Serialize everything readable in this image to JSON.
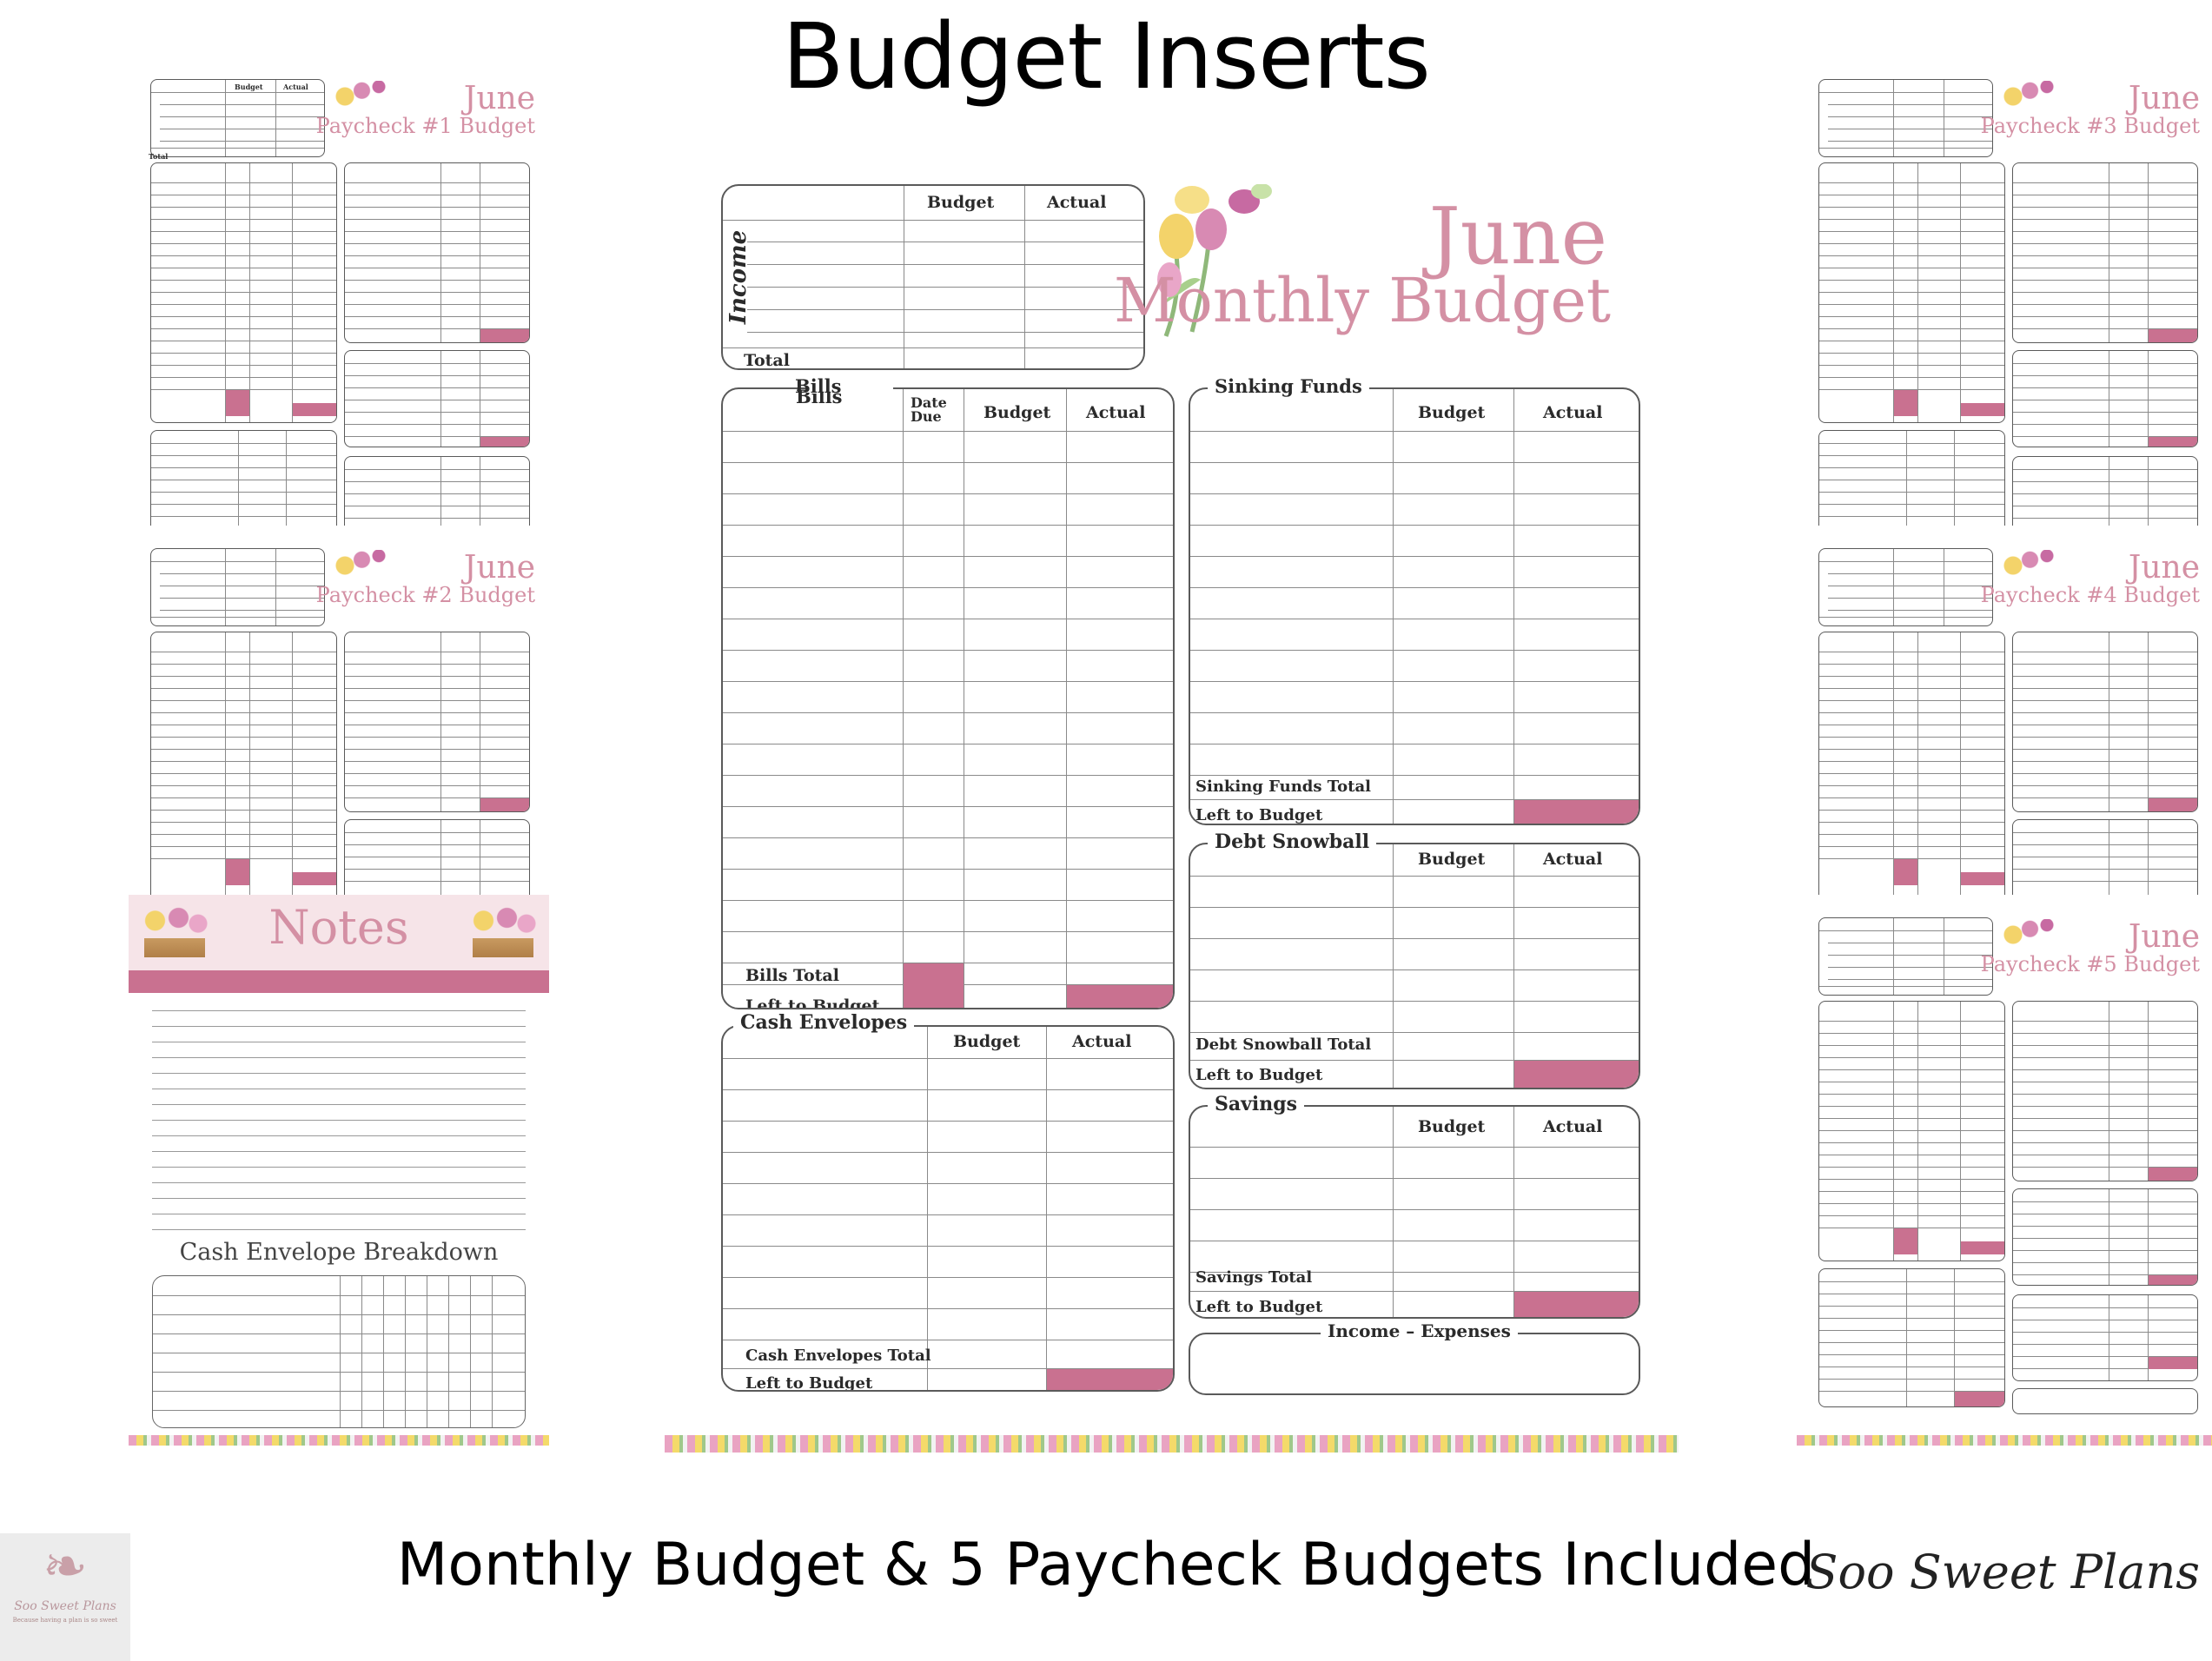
{
  "header": {
    "title": "Budget Inserts"
  },
  "footer": {
    "caption": "Monthly Budget & 5 Paycheck Budgets Included",
    "brand": "Soo Sweet Plans"
  },
  "logo": {
    "name": "Soo Sweet Plans",
    "tagline": "Because having a plan is so sweet"
  },
  "colors": {
    "accent": "#c97190",
    "title_pink": "#d490a4",
    "border": "#5a5a5a"
  },
  "monthly": {
    "month": "June",
    "subtitle": "Monthly Budget",
    "income": {
      "label": "Income",
      "total_label": "Total",
      "col_budget": "Budget",
      "col_actual": "Actual"
    },
    "bills": {
      "label": "Bills",
      "col_date": "Date Due",
      "col_budget": "Budget",
      "col_actual": "Actual",
      "total_label": "Bills Total",
      "left_label": "Left to Budget"
    },
    "cash": {
      "label": "Cash Envelopes",
      "col_budget": "Budget",
      "col_actual": "Actual",
      "total_label": "Cash Envelopes Total",
      "left_label": "Left to Budget"
    },
    "sinking": {
      "label": "Sinking Funds",
      "col_budget": "Budget",
      "col_actual": "Actual",
      "total_label": "Sinking Funds Total",
      "left_label": "Left to Budget"
    },
    "debt": {
      "label": "Debt Snowball",
      "col_budget": "Budget",
      "col_actual": "Actual",
      "total_label": "Debt Snowball Total",
      "left_label": "Left to Budget"
    },
    "savings": {
      "label": "Savings",
      "col_budget": "Budget",
      "col_actual": "Actual",
      "total_label": "Savings Total",
      "left_label": "Left to Budget"
    },
    "income_expenses": {
      "label": "Income – Expenses"
    }
  },
  "paychecks": [
    {
      "month": "June",
      "subtitle": "Paycheck #1 Budget"
    },
    {
      "month": "June",
      "subtitle": "Paycheck #2 Budget"
    },
    {
      "month": "June",
      "subtitle": "Paycheck #3 Budget"
    },
    {
      "month": "June",
      "subtitle": "Paycheck #4 Budget"
    },
    {
      "month": "June",
      "subtitle": "Paycheck #5 Budget"
    }
  ],
  "notes": {
    "title": "Notes",
    "breakdown_title": "Cash Envelope Breakdown"
  }
}
